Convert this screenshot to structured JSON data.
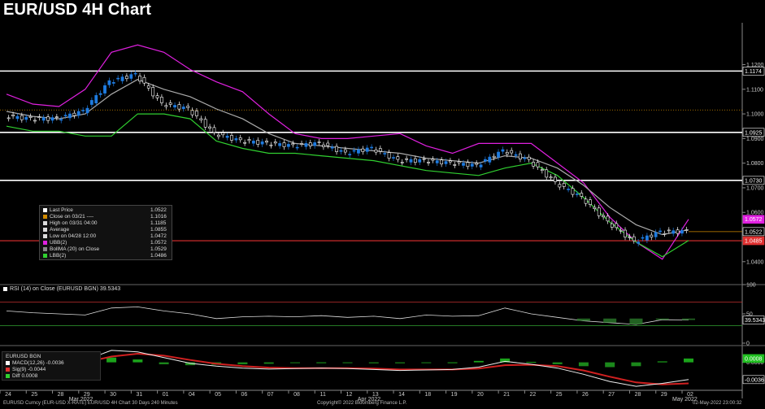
{
  "title": "EUR/USD 4H Chart",
  "colors": {
    "up": "#1e7be0",
    "down": "#ffffff",
    "ubb": "#e020e0",
    "lbb": "#30d030",
    "avg": "#aaaaaa",
    "level": "#ffffff",
    "red_level": "#e03030",
    "orange": "#d08a00"
  },
  "chart_data": {
    "type": "line",
    "title": "EUR/USD 4H Chart",
    "x_ticks": [
      "24",
      "25",
      "28",
      "29",
      "30",
      "31",
      "01",
      "04",
      "05",
      "06",
      "07",
      "08",
      "11",
      "12",
      "13",
      "14",
      "18",
      "19",
      "20",
      "21",
      "22",
      "25",
      "26",
      "27",
      "28",
      "29",
      "02"
    ],
    "x_month_labels": [
      "Mar 2022",
      "Apr 2022",
      "May 2022"
    ],
    "y_ticks": [
      "1.1200",
      "1.1100",
      "1.1000",
      "1.0900",
      "1.0800",
      "1.0700",
      "1.0600",
      "1.0400"
    ],
    "ylim": [
      1.033,
      1.137
    ],
    "horizontal_levels": [
      1.1174,
      1.0925,
      1.073
    ],
    "red_level": 1.0485,
    "orange_dotted_level": 1.1016,
    "price_labels": [
      {
        "text": "1.1174",
        "value": 1.1174
      },
      {
        "text": "1.0925",
        "value": 1.0925
      },
      {
        "text": "1.0730",
        "value": 1.073
      },
      {
        "text": "1.0572",
        "value": 1.0572
      },
      {
        "text": "1.0522",
        "value": 1.0522
      },
      {
        "text": "1.0485",
        "value": 1.0485
      }
    ],
    "series": [
      {
        "name": "UBB(2)",
        "values": [
          1.108,
          1.104,
          1.103,
          1.11,
          1.125,
          1.128,
          1.125,
          1.118,
          1.113,
          1.109,
          1.1,
          1.092,
          1.09,
          1.09,
          1.091,
          1.092,
          1.087,
          1.084,
          1.088,
          1.088,
          1.088,
          1.08,
          1.072,
          1.058,
          1.048,
          1.041,
          1.0572
        ]
      },
      {
        "name": "Average",
        "values": [
          1.101,
          1.099,
          1.098,
          1.1,
          1.108,
          1.114,
          1.11,
          1.107,
          1.102,
          1.098,
          1.092,
          1.088,
          1.087,
          1.086,
          1.085,
          1.084,
          1.082,
          1.081,
          1.08,
          1.083,
          1.082,
          1.078,
          1.071,
          1.062,
          1.055,
          1.051,
          1.0529
        ]
      },
      {
        "name": "LBB(2)",
        "values": [
          1.095,
          1.093,
          1.093,
          1.091,
          1.091,
          1.1,
          1.1,
          1.098,
          1.089,
          1.086,
          1.084,
          1.084,
          1.083,
          1.082,
          1.081,
          1.079,
          1.077,
          1.076,
          1.075,
          1.078,
          1.08,
          1.075,
          1.066,
          1.056,
          1.048,
          1.042,
          1.0486
        ]
      },
      {
        "name": "Last Price",
        "values": [
          1.099,
          1.098,
          1.098,
          1.101,
          1.113,
          1.116,
          1.104,
          1.102,
          1.092,
          1.089,
          1.088,
          1.087,
          1.088,
          1.084,
          1.086,
          1.081,
          1.081,
          1.08,
          1.079,
          1.085,
          1.081,
          1.072,
          1.066,
          1.056,
          1.048,
          1.052,
          1.0522
        ]
      }
    ],
    "rsi": {
      "label": "RSI (14)  on Close (EURUSD BGN) 39.5343",
      "value_label": "39.5343",
      "ylim": [
        0,
        100
      ],
      "y_ticks": [
        "100",
        "50",
        "0"
      ],
      "upper": 70,
      "lower": 30,
      "values": [
        55,
        52,
        50,
        48,
        60,
        62,
        55,
        50,
        42,
        45,
        46,
        45,
        47,
        44,
        46,
        42,
        48,
        46,
        47,
        60,
        50,
        44,
        38,
        35,
        32,
        40,
        39.5343
      ]
    },
    "macd": {
      "y_ticks": [
        "0.0000"
      ],
      "ylim": [
        -0.0055,
        0.0035
      ],
      "macd": [
        0.0,
        -0.0002,
        -0.0004,
        0.0005,
        0.0025,
        0.0022,
        0.001,
        -0.0002,
        -0.0008,
        -0.0012,
        -0.0014,
        -0.0013,
        -0.0012,
        -0.0013,
        -0.0015,
        -0.0017,
        -0.0016,
        -0.0015,
        -0.001,
        0.0002,
        -0.0004,
        -0.0012,
        -0.0025,
        -0.004,
        -0.005,
        -0.0044,
        -0.0036
      ],
      "signal": [
        0.0,
        -0.0001,
        -0.0003,
        0.0,
        0.0012,
        0.0018,
        0.0014,
        0.0005,
        -0.0003,
        -0.0008,
        -0.0011,
        -0.0012,
        -0.0012,
        -0.0012,
        -0.0013,
        -0.0015,
        -0.0015,
        -0.0015,
        -0.0013,
        -0.0006,
        -0.0005,
        -0.0008,
        -0.0017,
        -0.003,
        -0.0042,
        -0.0046,
        -0.0044
      ],
      "diff": [
        0.0,
        0.0,
        0.0,
        0.0005,
        0.001,
        0.0006,
        -0.0004,
        -0.0006,
        -0.0005,
        -0.0004,
        -0.0003,
        -0.0001,
        0.0,
        -0.0001,
        -0.0002,
        -0.0002,
        -0.0001,
        0.0,
        0.0003,
        0.0008,
        0.0001,
        -0.0004,
        -0.0008,
        -0.001,
        -0.0008,
        0.0002,
        0.0008
      ],
      "value_labels": [
        "0.0008",
        "-0.0036"
      ]
    }
  },
  "legend": [
    {
      "label": "Last Price",
      "value": "1.0522",
      "color": "#ffffff"
    },
    {
      "label": "Close on 03/21 ----",
      "value": "1.1016",
      "color": "#d08a00"
    },
    {
      "label": "High on 03/31 04:00",
      "value": "1.1185",
      "color": "#dddddd"
    },
    {
      "label": "Average",
      "value": "1.0855",
      "color": "#dddddd"
    },
    {
      "label": "Low on 04/28 12:00",
      "value": "1.0472",
      "color": "#dddddd"
    },
    {
      "label": "UBB(2)",
      "value": "1.0572",
      "color": "#e020e0"
    },
    {
      "label": "BollMA (20)  on Close",
      "value": "1.0529",
      "color": "#888888"
    },
    {
      "label": "LBB(2)",
      "value": "1.0486",
      "color": "#30d030"
    }
  ],
  "macd_legend": {
    "header": "EURUSD BGN",
    "rows": [
      {
        "label": "MACD(12,26)",
        "value": "-0.0036",
        "color": "#ffffff"
      },
      {
        "label": "Sig(9)",
        "value": "-0.0044",
        "color": "#e03030"
      },
      {
        "label": "Diff",
        "value": "0.0008",
        "color": "#30d030"
      }
    ]
  },
  "footer": {
    "left": "EURUSD Curncy (EUR-USD X-RATE) EUR/USD 4H Chart 30 Days 240 Minutes",
    "center": "Copyright© 2022 Bloomberg Finance L.P.",
    "right": "02-May-2022 23:00:32"
  }
}
